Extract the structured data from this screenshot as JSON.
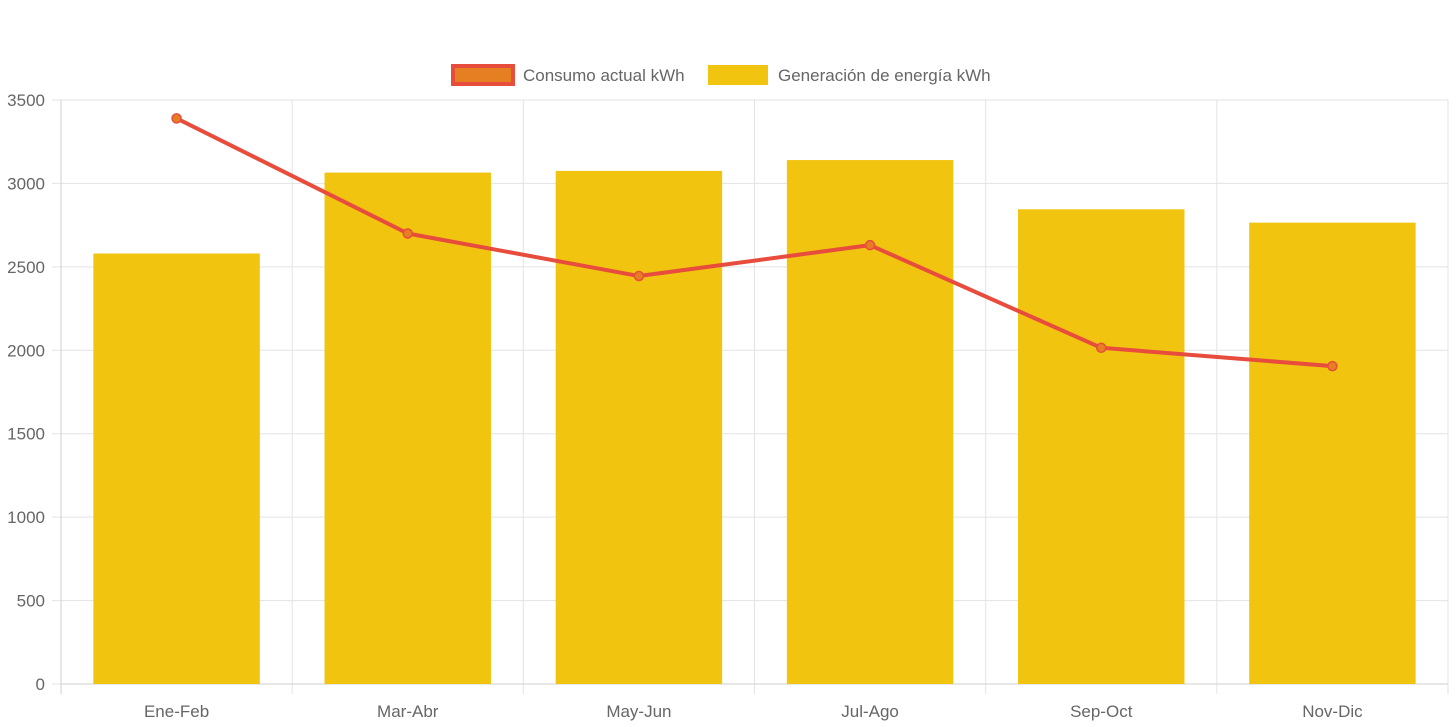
{
  "chart_data": {
    "type": "bar",
    "categories": [
      "Ene-Feb",
      "Mar-Abr",
      "May-Jun",
      "Jul-Ago",
      "Sep-Oct",
      "Nov-Dic"
    ],
    "series": [
      {
        "name": "Consumo actual kWh",
        "type": "line",
        "values": [
          3390,
          2700,
          2445,
          2630,
          2015,
          1905
        ],
        "color": "#e74c3c",
        "point_color": "#e67e22"
      },
      {
        "name": "Generación de energía kWh",
        "type": "bar",
        "values": [
          2580,
          3065,
          3075,
          3140,
          2845,
          2765
        ],
        "color": "#f1c40f"
      }
    ],
    "ylim": [
      0,
      3500
    ],
    "yticks": [
      0,
      500,
      1000,
      1500,
      2000,
      2500,
      3000,
      3500
    ],
    "legend_position": "top",
    "grid": true
  }
}
